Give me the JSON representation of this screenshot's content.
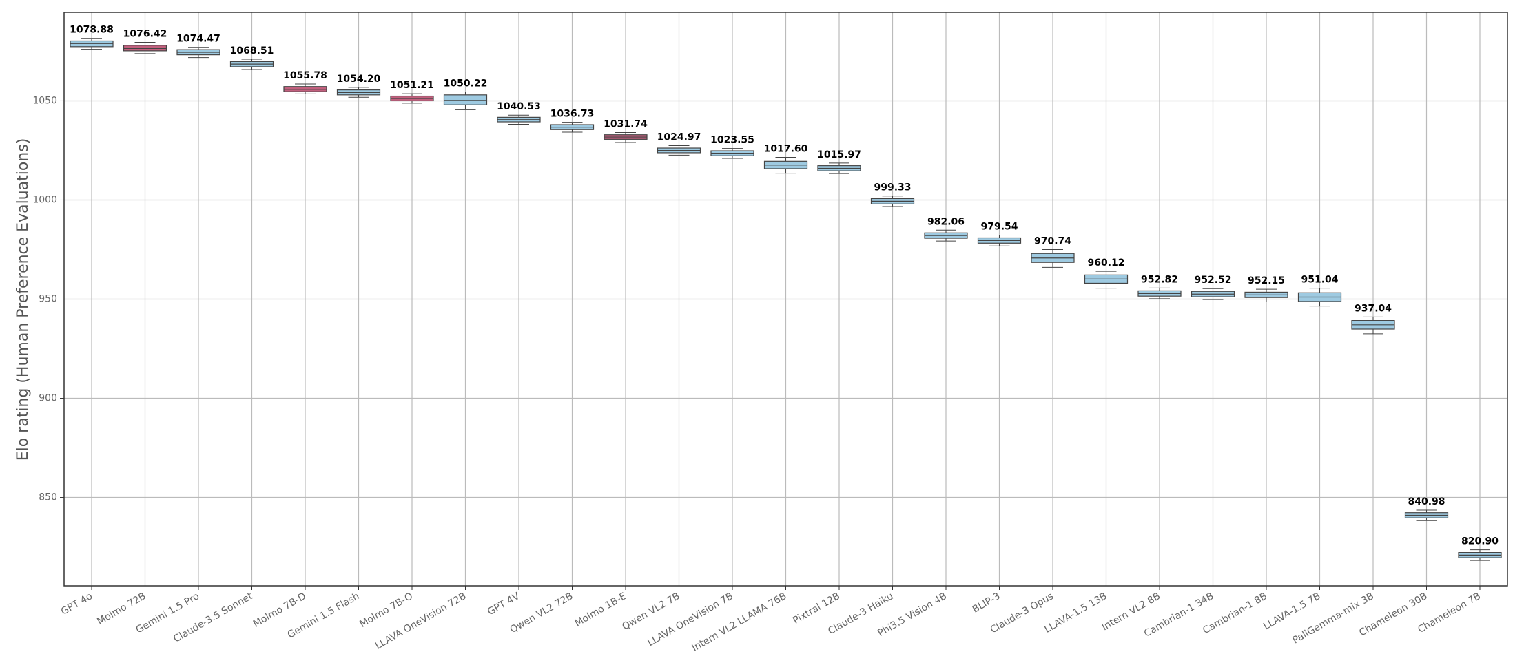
{
  "chart_data": {
    "type": "box",
    "y_label": "Elo rating (Human Preference Evaluations)",
    "categories": [
      "GPT 4o",
      "Molmo 72B",
      "Gemini 1.5 Pro",
      "Claude-3.5 Sonnet",
      "Molmo 7B-D",
      "Gemini 1.5 Flash",
      "Molmo 7B-O",
      "LLAVA OneVision 72B",
      "GPT 4V",
      "Qwen VL2 72B",
      "Molmo 1B-E",
      "Qwen VL2 7B",
      "LLAVA OneVision 7B",
      "Intern VL2 LLAMA 76B",
      "Pixtral 12B",
      "Claude-3 Haiku",
      "Phi3.5 Vision 4B",
      "BLIP-3",
      "Claude-3 Opus",
      "LLAVA-1.5 13B",
      "Intern VL2 8B",
      "Cambrian-1 34B",
      "Cambrian-1 8B",
      "LLAVA-1.5 7B",
      "PaliGemma-mix 3B",
      "Chameleon 30B",
      "Chameleon 7B"
    ],
    "values": [
      1078.88,
      1076.42,
      1074.47,
      1068.51,
      1055.78,
      1054.2,
      1051.21,
      1050.22,
      1040.53,
      1036.73,
      1031.74,
      1024.97,
      1023.55,
      1017.6,
      1015.97,
      999.33,
      982.06,
      979.54,
      970.74,
      960.12,
      952.82,
      952.52,
      952.15,
      951.04,
      937.04,
      840.98,
      820.9
    ],
    "value_labels": [
      "1078.88",
      "1076.42",
      "1074.47",
      "1068.51",
      "1055.78",
      "1054.20",
      "1051.21",
      "1050.22",
      "1040.53",
      "1036.73",
      "1031.74",
      "1024.97",
      "1023.55",
      "1017.60",
      "1015.97",
      "999.33",
      "982.06",
      "979.54",
      "970.74",
      "960.12",
      "952.82",
      "952.52",
      "952.15",
      "951.04",
      "937.04",
      "840.98",
      "820.90"
    ],
    "q1": [
      1077.3,
      1075.2,
      1073.2,
      1067.2,
      1054.6,
      1053.0,
      1050.0,
      1048.0,
      1039.4,
      1035.5,
      1030.6,
      1023.8,
      1022.3,
      1015.8,
      1014.7,
      998.0,
      980.7,
      978.2,
      968.5,
      958.0,
      951.5,
      951.2,
      950.8,
      948.8,
      934.9,
      839.7,
      819.6
    ],
    "q3": [
      1080.2,
      1078.0,
      1075.8,
      1069.8,
      1057.2,
      1055.5,
      1052.4,
      1053.0,
      1041.7,
      1038.0,
      1032.9,
      1026.2,
      1024.8,
      1019.5,
      1017.3,
      1000.7,
      983.4,
      980.9,
      973.0,
      962.2,
      954.2,
      953.9,
      953.5,
      953.2,
      939.2,
      842.3,
      822.2
    ],
    "whisker_low": [
      1076.0,
      1073.8,
      1071.8,
      1065.8,
      1053.5,
      1051.8,
      1048.8,
      1045.5,
      1038.2,
      1034.2,
      1029.0,
      1022.6,
      1021.0,
      1013.5,
      1013.3,
      996.7,
      979.3,
      976.8,
      966.0,
      955.5,
      950.2,
      949.8,
      948.6,
      946.5,
      932.5,
      838.3,
      818.2
    ],
    "whisker_high": [
      1081.5,
      1079.5,
      1077.0,
      1071.0,
      1058.5,
      1056.8,
      1053.6,
      1054.5,
      1042.8,
      1039.2,
      1034.0,
      1027.4,
      1026.0,
      1021.5,
      1018.6,
      1002.0,
      984.8,
      982.3,
      975.0,
      964.0,
      955.6,
      955.3,
      955.0,
      955.5,
      941.0,
      843.6,
      823.6
    ],
    "colors": [
      "#9ecae1",
      "#c2607e",
      "#9ecae1",
      "#9ecae1",
      "#c2607e",
      "#9ecae1",
      "#c2607e",
      "#9ecae1",
      "#9ecae1",
      "#9ecae1",
      "#c2607e",
      "#9ecae1",
      "#9ecae1",
      "#9ecae1",
      "#9ecae1",
      "#9ecae1",
      "#9ecae1",
      "#9ecae1",
      "#9ecae1",
      "#9ecae1",
      "#9ecae1",
      "#9ecae1",
      "#9ecae1",
      "#9ecae1",
      "#9ecae1",
      "#9ecae1",
      "#9ecae1"
    ],
    "ylim": [
      805.4,
      1094.6
    ],
    "yticks": [
      850,
      900,
      950,
      1000,
      1050
    ],
    "grid": true
  }
}
